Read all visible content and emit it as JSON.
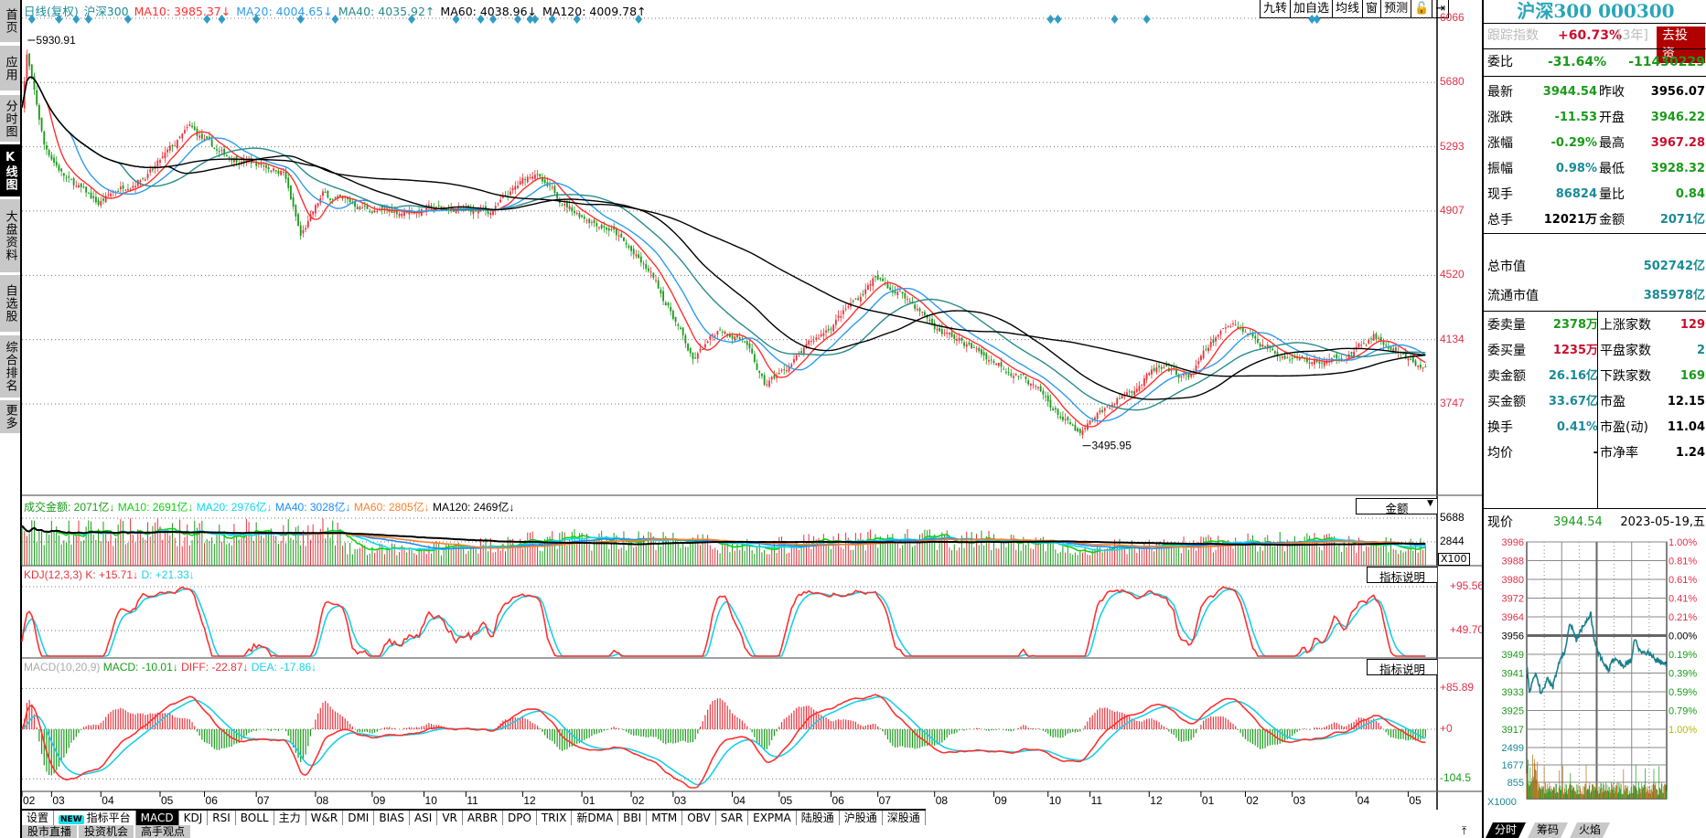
{
  "sidebar": {
    "items": [
      "首页",
      "应用",
      "分时图",
      "K线图",
      "大盘资料",
      "自选股",
      "综合排名",
      "更多"
    ],
    "active": 3
  },
  "header": {
    "period": "日线(复权)",
    "name": "沪深300",
    "ma10": "MA10: 3985.37↓",
    "ma20": "MA20: 4004.65↓",
    "ma40": "MA40: 4035.92↑",
    "ma60": "MA60: 4038.96↓",
    "ma120": "MA120: 4009.78↑"
  },
  "toolbar": [
    "九转",
    "加自选",
    "均线",
    "窗",
    "预测",
    "🔓",
    "⇥"
  ],
  "colors": {
    "red": "#e8323c",
    "green": "#1a9a1a",
    "teal": "#1a8a96",
    "black": "#000000",
    "ma10": "#ff3030",
    "ma20": "#2f9bef",
    "ma40": "#2a8a8a",
    "ma60": "#000000",
    "ma120": "#000000",
    "vma10": "#10d010",
    "vma20": "#10d8ee",
    "vma40": "#1a8cff",
    "vma60": "#ff7f27",
    "vma120": "#000000",
    "k": "#ff3030",
    "d": "#18d0e8",
    "diamond": "#2e9ec8"
  },
  "main": {
    "high_label": "5930.91",
    "low_label": "3495.95",
    "axis": [
      {
        "v": 6066,
        "t": "6066"
      },
      {
        "v": 5680,
        "t": "5680"
      },
      {
        "v": 5293,
        "t": "5293"
      },
      {
        "v": 4907,
        "t": "4907"
      },
      {
        "v": 4520,
        "t": "4520"
      },
      {
        "v": 4134,
        "t": "4134"
      },
      {
        "v": 3747,
        "t": "3747"
      }
    ]
  },
  "volume": {
    "head": {
      "t": "成交金额: 2071亿↓",
      "ma10": "MA10: 2691亿↓",
      "ma20": "MA20: 2976亿↓",
      "ma40": "MA40: 3028亿↓",
      "ma60": "MA60: 2805亿↓",
      "ma120": "MA120: 2469亿↓"
    },
    "selector": "金额",
    "axis": [
      {
        "v": 5688,
        "t": "5688"
      },
      {
        "v": 2844,
        "t": "2844"
      }
    ],
    "unit": "X100"
  },
  "kdj": {
    "head": {
      "t": "KDJ(12,3,3)",
      "k": "K: +15.71↓",
      "d": "D: +21.33↓"
    },
    "button": "指标说明",
    "axis": [
      {
        "v": 95.56,
        "t": "+95.56"
      },
      {
        "v": 49.7,
        "t": "+49.70"
      }
    ]
  },
  "macd": {
    "head": {
      "t": "MACD(10,20,9)",
      "m": "MACD: -10.01↓",
      "diff": "DIFF: -22.87↓",
      "dea": "DEA: -17.86↓"
    },
    "button": "指标说明",
    "axis": [
      {
        "v": 85.89,
        "t": "+85.89"
      },
      {
        "v": 0,
        "t": "+0"
      },
      {
        "v": -104.5,
        "t": "-104.5"
      }
    ]
  },
  "months": [
    {
      "d": 0,
      "t": "02"
    },
    {
      "d": 12,
      "t": "03"
    },
    {
      "d": 32,
      "t": "04"
    },
    {
      "d": 56,
      "t": "05"
    },
    {
      "d": 74,
      "t": "06"
    },
    {
      "d": 95,
      "t": "07"
    },
    {
      "d": 119,
      "t": "08"
    },
    {
      "d": 142,
      "t": "09"
    },
    {
      "d": 163,
      "t": "10"
    },
    {
      "d": 180,
      "t": "11"
    },
    {
      "d": 203,
      "t": "12"
    },
    {
      "d": 227,
      "t": "01"
    },
    {
      "d": 247,
      "t": "02"
    },
    {
      "d": 264,
      "t": "03"
    },
    {
      "d": 288,
      "t": "04"
    },
    {
      "d": 307,
      "t": "05"
    },
    {
      "d": 328,
      "t": "06"
    },
    {
      "d": 347,
      "t": "07"
    },
    {
      "d": 370,
      "t": "08"
    },
    {
      "d": 394,
      "t": "09"
    },
    {
      "d": 416,
      "t": "10"
    },
    {
      "d": 433,
      "t": "11"
    },
    {
      "d": 457,
      "t": "12"
    },
    {
      "d": 478,
      "t": "01"
    },
    {
      "d": 496,
      "t": "02"
    },
    {
      "d": 515,
      "t": "03"
    },
    {
      "d": 541,
      "t": "04"
    },
    {
      "d": 562,
      "t": "05"
    }
  ],
  "tabs": {
    "items": [
      "设置",
      "指标平台",
      "MACD",
      "KDJ",
      "RSI",
      "BOLL",
      "主力",
      "W&R",
      "DMI",
      "BIAS",
      "ASI",
      "VR",
      "ARBR",
      "DPO",
      "TRIX",
      "新DMA",
      "BBI",
      "MTM",
      "OBV",
      "SAR",
      "EXPMA",
      "陆股通",
      "沪股通",
      "深股通"
    ],
    "new_badge": "NEW",
    "active": 2
  },
  "bottom_tabs": [
    "股市直播",
    "投资机会",
    "高手观点"
  ],
  "quote": {
    "title": "沪深300 000300",
    "track": {
      "label": "跟踪指数",
      "value": "+60.73%",
      "period": "[3年]",
      "button": "去投资"
    },
    "weibi": {
      "label": "委比",
      "pct": "-31.64%",
      "value": "-11430229"
    },
    "rows": [
      {
        "l1": "最新",
        "v1": "3944.54",
        "c1": "green",
        "l2": "昨收",
        "v2": "3956.07",
        "c2": "black"
      },
      {
        "l1": "涨跌",
        "v1": "-11.53",
        "c1": "green",
        "l2": "开盘",
        "v2": "3946.22",
        "c2": "green"
      },
      {
        "l1": "涨幅",
        "v1": "-0.29%",
        "c1": "green",
        "l2": "最高",
        "v2": "3967.28",
        "c2": "red"
      },
      {
        "l1": "振幅",
        "v1": "0.98%",
        "c1": "teal",
        "l2": "最低",
        "v2": "3928.32",
        "c2": "green"
      },
      {
        "l1": "现手",
        "v1": "86824",
        "c1": "teal",
        "l2": "量比",
        "v2": "0.84",
        "c2": "green"
      },
      {
        "l1": "总手",
        "v1": "12021万",
        "c1": "black",
        "l2": "金额",
        "v2": "2071亿",
        "c2": "teal"
      }
    ],
    "cap": [
      {
        "l": "总市值",
        "v": "502742亿"
      },
      {
        "l": "流通市值",
        "v": "385978亿"
      }
    ],
    "rows2": [
      {
        "l1": "委卖量",
        "v1": "2378万",
        "c1": "green",
        "l2": "上涨家数",
        "v2": "129",
        "c2": "red"
      },
      {
        "l1": "委买量",
        "v1": "1235万",
        "c1": "red",
        "l2": "平盘家数",
        "v2": "2",
        "c2": "teal"
      },
      {
        "l1": "卖金额",
        "v1": "26.16亿",
        "c1": "teal",
        "l2": "下跌家数",
        "v2": "169",
        "c2": "green"
      },
      {
        "l1": "买金额",
        "v1": "33.67亿",
        "c1": "teal",
        "l2": "市盈",
        "v2": "12.15",
        "c2": "black"
      },
      {
        "l1": "换手",
        "v1": "0.41%",
        "c1": "teal",
        "l2": "市盈(动)",
        "v2": "11.04",
        "c2": "black"
      },
      {
        "l1": "均价",
        "v1": "-",
        "c1": "black",
        "l2": "市净率",
        "v2": "1.24",
        "c2": "black"
      }
    ],
    "now": {
      "label": "现价",
      "price": "3944.54",
      "date": "2023-05-19,五"
    },
    "mini_left": [
      "3996",
      "3988",
      "3980",
      "3972",
      "3964",
      "3956",
      "3949",
      "3941",
      "3933",
      "3925",
      "3917"
    ],
    "mini_right": [
      "1.00%",
      "0.81%",
      "0.61%",
      "0.41%",
      "0.21%",
      "0.00%",
      "0.19%",
      "0.39%",
      "0.59%",
      "0.79%",
      "1.00%"
    ],
    "mini_vol": [
      "2499",
      "1677",
      "855"
    ],
    "mini_unit": "X1000",
    "tabs": [
      "分时",
      "筹码",
      "火焰"
    ]
  },
  "chart_data": {
    "type": "candlestick",
    "title": "沪深300 日线(复权)",
    "days": 570,
    "ylim": [
      3495.95,
      6066
    ],
    "close_path": [
      [
        0,
        5550
      ],
      [
        2,
        5850
      ],
      [
        9,
        5300
      ],
      [
        18,
        5100
      ],
      [
        31,
        4950
      ],
      [
        40,
        5050
      ],
      [
        53,
        5150
      ],
      [
        68,
        5400
      ],
      [
        80,
        5250
      ],
      [
        93,
        5200
      ],
      [
        106,
        5150
      ],
      [
        113,
        4750
      ],
      [
        122,
        5000
      ],
      [
        133,
        4950
      ],
      [
        146,
        4900
      ],
      [
        168,
        4920
      ],
      [
        190,
        4900
      ],
      [
        208,
        5150
      ],
      [
        212,
        5050
      ],
      [
        225,
        4900
      ],
      [
        239,
        4800
      ],
      [
        256,
        4500
      ],
      [
        265,
        4250
      ],
      [
        272,
        4000
      ],
      [
        283,
        4200
      ],
      [
        292,
        4150
      ],
      [
        301,
        3850
      ],
      [
        309,
        3950
      ],
      [
        323,
        4150
      ],
      [
        340,
        4400
      ],
      [
        345,
        4500
      ],
      [
        358,
        4400
      ],
      [
        371,
        4200
      ],
      [
        389,
        4050
      ],
      [
        407,
        3900
      ],
      [
        416,
        3750
      ],
      [
        429,
        3550
      ],
      [
        438,
        3700
      ],
      [
        451,
        3850
      ],
      [
        460,
        3950
      ],
      [
        473,
        3900
      ],
      [
        482,
        4100
      ],
      [
        491,
        4250
      ],
      [
        504,
        4100
      ],
      [
        522,
        4000
      ],
      [
        531,
        4000
      ],
      [
        544,
        4100
      ],
      [
        548,
        4150
      ],
      [
        562,
        4000
      ],
      [
        570,
        3945
      ]
    ],
    "signal_days": [
      4,
      15,
      22,
      27,
      43,
      75,
      81,
      95,
      113,
      127,
      158,
      176,
      186,
      191,
      201,
      206,
      208,
      215,
      225,
      250,
      417,
      420,
      443,
      456,
      523,
      525
    ],
    "intraday": {
      "prev_close": 3956.07,
      "ylim": [
        3917,
        3996
      ],
      "path": [
        [
          0,
          3945
        ],
        [
          5,
          3933
        ],
        [
          15,
          3940
        ],
        [
          25,
          3932
        ],
        [
          35,
          3938
        ],
        [
          45,
          3935
        ],
        [
          55,
          3945
        ],
        [
          65,
          3950
        ],
        [
          75,
          3962
        ],
        [
          85,
          3955
        ],
        [
          100,
          3962
        ],
        [
          110,
          3966
        ],
        [
          115,
          3956
        ],
        [
          125,
          3948
        ],
        [
          140,
          3942
        ],
        [
          150,
          3947
        ],
        [
          165,
          3944
        ],
        [
          180,
          3946
        ],
        [
          185,
          3955
        ],
        [
          195,
          3950
        ],
        [
          210,
          3949
        ],
        [
          225,
          3946
        ],
        [
          240,
          3944
        ]
      ]
    }
  }
}
